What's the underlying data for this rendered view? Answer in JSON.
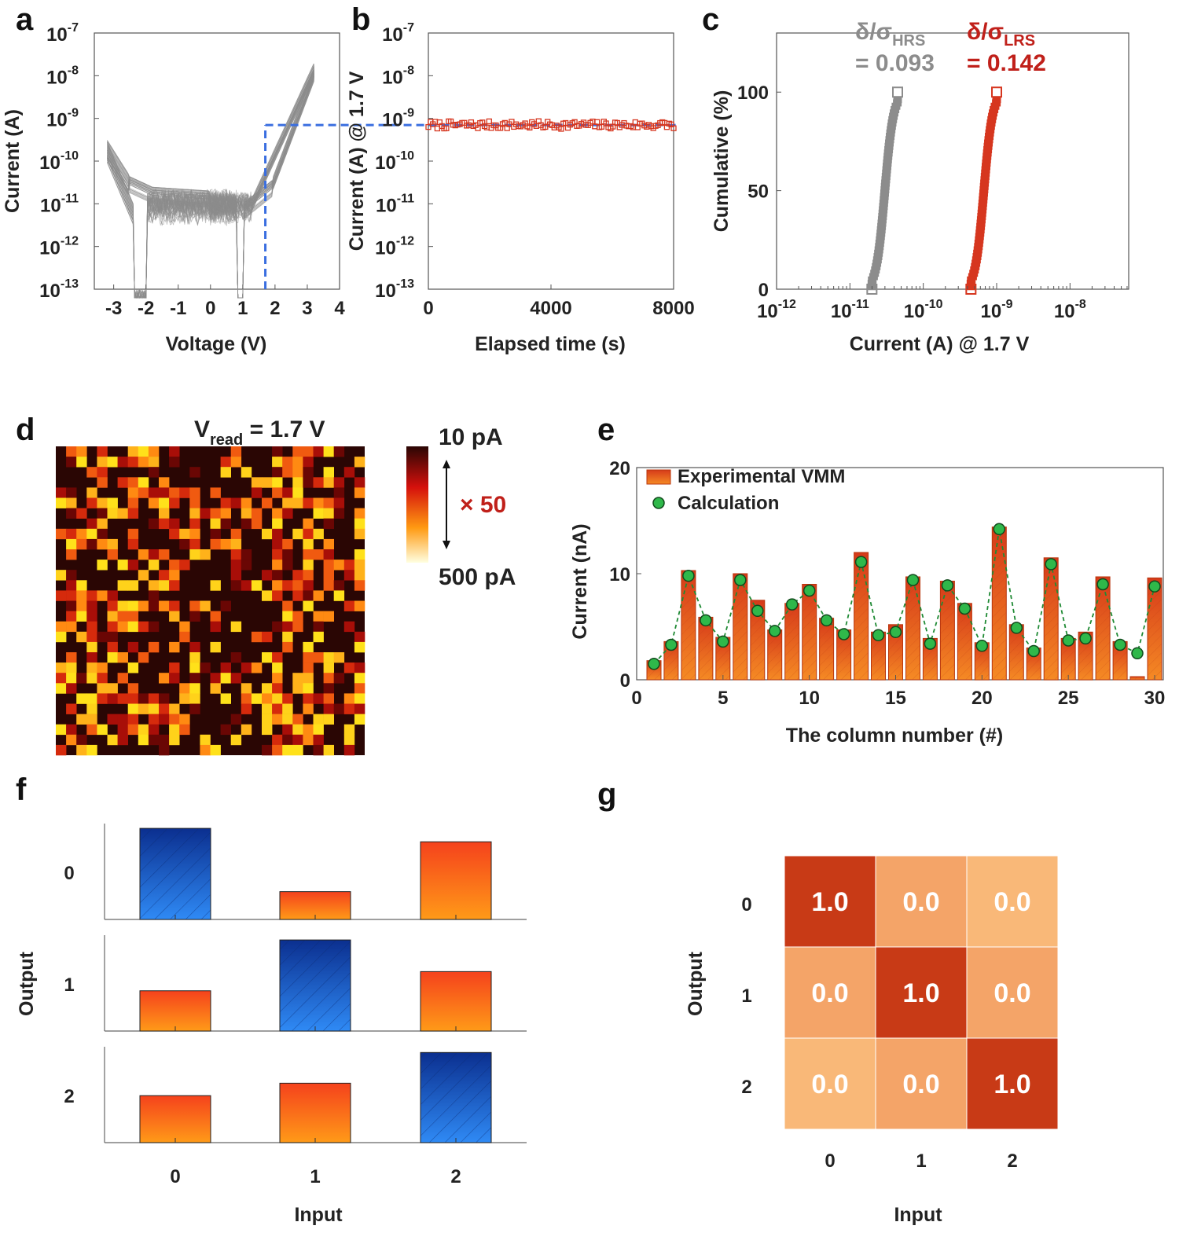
{
  "panels": {
    "a": {
      "letter": "a",
      "chart_data": {
        "type": "line",
        "title": "",
        "xlabel": "Voltage (V)",
        "ylabel": "Current (A)",
        "xlim": [
          -3.6,
          4
        ],
        "ylim_log10": [
          -13,
          -7
        ],
        "x_ticks": [
          "-3",
          "-2",
          "-1",
          "0",
          "1",
          "2",
          "3",
          "4"
        ],
        "y_ticks": [
          {
            "base": "10",
            "exp": "-7"
          },
          {
            "base": "10",
            "exp": "-8"
          },
          {
            "base": "10",
            "exp": "-9"
          },
          {
            "base": "10",
            "exp": "-10"
          },
          {
            "base": "10",
            "exp": "-11"
          },
          {
            "base": "10",
            "exp": "-12"
          },
          {
            "base": "10",
            "exp": "-13"
          }
        ],
        "cycles": 40,
        "read_voltage": 1.7,
        "read_current": 7e-10,
        "series_color": "#8c8c8c",
        "guide_color": "#3a6ee0"
      }
    },
    "b": {
      "letter": "b",
      "chart_data": {
        "type": "scatter",
        "xlabel": "Elapsed time (s)",
        "ylabel": "Current (A) @ 1.7 V",
        "xlim": [
          0,
          8000
        ],
        "ylim_log10": [
          -13,
          -7
        ],
        "x_ticks": [
          "0",
          "4000",
          "8000"
        ],
        "y_ticks": [
          {
            "base": "10",
            "exp": "-7"
          },
          {
            "base": "10",
            "exp": "-8"
          },
          {
            "base": "10",
            "exp": "-9"
          },
          {
            "base": "10",
            "exp": "-10"
          },
          {
            "base": "10",
            "exp": "-11"
          },
          {
            "base": "10",
            "exp": "-12"
          },
          {
            "base": "10",
            "exp": "-13"
          }
        ],
        "mean_current": 7e-10,
        "series_color": "#d6361f"
      }
    },
    "c": {
      "letter": "c",
      "chart_data": {
        "type": "line",
        "xlabel": "Current (A) @ 1.7 V",
        "ylabel": "Cumulative (%)",
        "xlim_log10": [
          -12,
          -7.2
        ],
        "ylim": [
          0,
          130
        ],
        "x_ticks": [
          {
            "base": "10",
            "exp": "-12"
          },
          {
            "base": "10",
            "exp": "-11"
          },
          {
            "base": "10",
            "exp": "-10"
          },
          {
            "base": "10",
            "exp": "-9"
          },
          {
            "base": "10",
            "exp": "-8"
          }
        ],
        "y_ticks": [
          "0",
          "50",
          "100"
        ],
        "series": [
          {
            "name": "HRS",
            "min_log10": -10.7,
            "max_log10": -10.35,
            "color": "#8c8c8c",
            "label_main": "δ/σ",
            "label_sub": "HRS",
            "value_text": "= 0.093"
          },
          {
            "name": "LRS",
            "min_log10": -9.35,
            "max_log10": -9.0,
            "color": "#d6361f",
            "label_main": "δ/σ",
            "label_sub": "LRS",
            "value_text": "= 0.142"
          }
        ]
      }
    },
    "d": {
      "letter": "d",
      "title_main": "V",
      "title_sub": "read",
      "title_rest": " = 1.7 V",
      "chart_data": {
        "type": "heatmap",
        "rows": 30,
        "columns": 30,
        "colorbar_top": "10 pA",
        "colorbar_bottom": "500 pA",
        "ratio_label": "× 50",
        "ratio_color": "#c0201a"
      }
    },
    "e": {
      "letter": "e",
      "chart_data": {
        "type": "bar",
        "xlabel": "The column number (#)",
        "ylabel": "Current (nA)",
        "xlim": [
          0,
          30.5
        ],
        "ylim": [
          0,
          20
        ],
        "x_ticks": [
          "0",
          "5",
          "10",
          "15",
          "20",
          "25",
          "30"
        ],
        "y_ticks": [
          "0",
          "10",
          "20"
        ],
        "categories": [
          1,
          2,
          3,
          4,
          5,
          6,
          7,
          8,
          9,
          10,
          11,
          12,
          13,
          14,
          15,
          16,
          17,
          18,
          19,
          20,
          21,
          22,
          23,
          24,
          25,
          26,
          27,
          28,
          29,
          30
        ],
        "series": [
          {
            "name": "Experimental VMM",
            "values": [
              1.8,
              3.6,
              10.3,
              5.9,
              4.0,
              10.0,
              7.5,
              4.7,
              7.2,
              9.0,
              5.8,
              4.7,
              12.0,
              4.5,
              5.2,
              9.7,
              3.9,
              9.3,
              7.2,
              3.5,
              14.4,
              5.2,
              3.0,
              11.5,
              3.9,
              4.5,
              9.7,
              3.6,
              0.3,
              9.6
            ],
            "color": "#e8561c"
          },
          {
            "name": "Calculation",
            "values": [
              1.5,
              3.3,
              9.8,
              5.6,
              3.6,
              9.4,
              6.5,
              4.6,
              7.1,
              8.4,
              5.6,
              4.3,
              11.1,
              4.2,
              4.5,
              9.4,
              3.4,
              8.9,
              6.7,
              3.2,
              14.2,
              4.9,
              2.7,
              10.9,
              3.7,
              3.9,
              9.0,
              3.3,
              2.5,
              8.8
            ],
            "color": "#2fb84a"
          }
        ]
      }
    },
    "f": {
      "letter": "f",
      "chart_data": {
        "type": "bar",
        "xlabel": "Input",
        "ylabel": "Output",
        "categories": [
          "0",
          "1",
          "2"
        ],
        "series": [
          {
            "name": "0",
            "values": [
              0.95,
              0.29,
              0.81
            ],
            "highlight": 0
          },
          {
            "name": "1",
            "values": [
              0.42,
              0.95,
              0.62
            ],
            "highlight": 1
          },
          {
            "name": "2",
            "values": [
              0.49,
              0.62,
              0.94
            ],
            "highlight": 2
          }
        ],
        "highlight_color": "#1d6fe0",
        "bar_color": "#f5521c"
      }
    },
    "g": {
      "letter": "g",
      "chart_data": {
        "type": "heatmap",
        "xlabel": "Input",
        "ylabel": "Output",
        "x_categories": [
          "0",
          "1",
          "2"
        ],
        "y_categories": [
          "0",
          "1",
          "2"
        ],
        "values": [
          [
            "1.0",
            "0.0",
            "0.0"
          ],
          [
            "0.0",
            "1.0",
            "0.0"
          ],
          [
            "0.0",
            "0.0",
            "1.0"
          ]
        ],
        "colors": [
          [
            "#c83a16",
            "#f4a468",
            "#f9b878"
          ],
          [
            "#f4a468",
            "#c83a16",
            "#f4a468"
          ],
          [
            "#f9b878",
            "#f4a468",
            "#c83a16"
          ]
        ]
      }
    }
  }
}
